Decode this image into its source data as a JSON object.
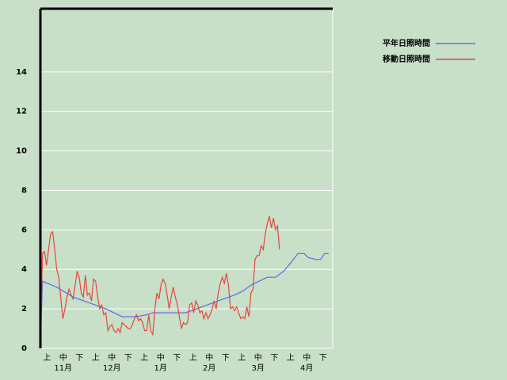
{
  "chart_data": {
    "type": "line",
    "x_labels": [
      "上",
      "中",
      "下",
      "上",
      "中",
      "下",
      "上",
      "中",
      "下",
      "上",
      "中",
      "下",
      "上",
      "中",
      "下",
      "上",
      "中",
      "下"
    ],
    "month_labels": [
      "11月",
      "12月",
      "1月",
      "2月",
      "3月",
      "4月"
    ],
    "xlim": [
      0,
      143
    ],
    "ylim": [
      0,
      17.2
    ],
    "yticks": [
      0,
      2,
      4,
      6,
      8,
      10,
      12,
      14
    ],
    "grid": true,
    "legend": "top-right",
    "series": [
      {
        "name": "平年日照時間",
        "color": "#5a6ee6",
        "x": [
          0,
          1,
          8,
          16,
          24,
          32,
          40,
          47,
          52,
          55,
          71,
          79,
          87,
          95,
          99,
          103,
          107,
          111,
          115,
          119,
          123,
          126,
          129,
          131,
          135,
          137,
          139,
          141
        ],
        "values": [
          0,
          3.4,
          3.1,
          2.6,
          2.3,
          2.0,
          1.6,
          1.6,
          1.7,
          1.8,
          1.8,
          2.1,
          2.4,
          2.7,
          2.9,
          3.2,
          3.4,
          3.6,
          3.6,
          3.9,
          4.4,
          4.8,
          4.8,
          4.6,
          4.5,
          4.5,
          4.8,
          4.8
        ]
      },
      {
        "name": "移動日照時間",
        "color": "#e8463c",
        "x": [
          0,
          1,
          2,
          3,
          4,
          5,
          6,
          7,
          8,
          9,
          10,
          11,
          12,
          13,
          14,
          15,
          16,
          17,
          18,
          19,
          20,
          21,
          22,
          23,
          24,
          25,
          26,
          27,
          28,
          29,
          30,
          31,
          32,
          33,
          34,
          35,
          36,
          37,
          38,
          39,
          40,
          41,
          42,
          43,
          44,
          45,
          46,
          47,
          48,
          49,
          50,
          51,
          52,
          53,
          54,
          55,
          56,
          57,
          58,
          59,
          60,
          61,
          62,
          63,
          64,
          65,
          66,
          67,
          68,
          69,
          70,
          71,
          72,
          73,
          74,
          75,
          76,
          77,
          78,
          79,
          80,
          81,
          82,
          83,
          84,
          85,
          86,
          87,
          88,
          89,
          90,
          91,
          92,
          93,
          94,
          95,
          96,
          97,
          98,
          99,
          100,
          101,
          102,
          103,
          104,
          105,
          106,
          107,
          108,
          109,
          110,
          111,
          112,
          113,
          114,
          115,
          116,
          117
        ],
        "values": [
          0,
          4.8,
          4.9,
          4.2,
          5.0,
          5.8,
          5.9,
          5.0,
          4.0,
          3.6,
          2.5,
          1.5,
          2.0,
          2.6,
          3.0,
          2.7,
          2.5,
          3.2,
          3.9,
          3.6,
          2.8,
          2.6,
          3.7,
          2.7,
          2.8,
          2.4,
          3.5,
          3.4,
          2.6,
          2.0,
          2.2,
          1.7,
          1.8,
          0.9,
          1.1,
          1.2,
          0.9,
          0.8,
          1.0,
          0.8,
          1.3,
          1.2,
          1.1,
          1.0,
          1.0,
          1.2,
          1.5,
          1.7,
          1.4,
          1.5,
          1.3,
          0.9,
          0.9,
          1.7,
          0.9,
          0.7,
          2.0,
          2.8,
          2.5,
          3.2,
          3.5,
          3.3,
          2.7,
          2.0,
          2.6,
          3.1,
          2.6,
          2.2,
          1.6,
          1.0,
          1.3,
          1.2,
          1.3,
          2.2,
          2.3,
          1.8,
          2.4,
          2.2,
          1.8,
          1.9,
          1.5,
          1.8,
          1.5,
          1.7,
          2.0,
          2.4,
          2.0,
          2.8,
          3.3,
          3.6,
          3.3,
          3.8,
          3.2,
          2.0,
          2.1,
          1.9,
          2.1,
          1.8,
          1.5,
          1.6,
          1.5,
          2.1,
          1.6,
          2.8,
          3.0,
          4.5,
          4.7,
          4.7,
          5.2,
          5.0,
          5.8,
          6.3,
          6.7,
          6.1,
          6.6,
          6.0,
          6.2,
          5.0
        ]
      }
    ]
  }
}
